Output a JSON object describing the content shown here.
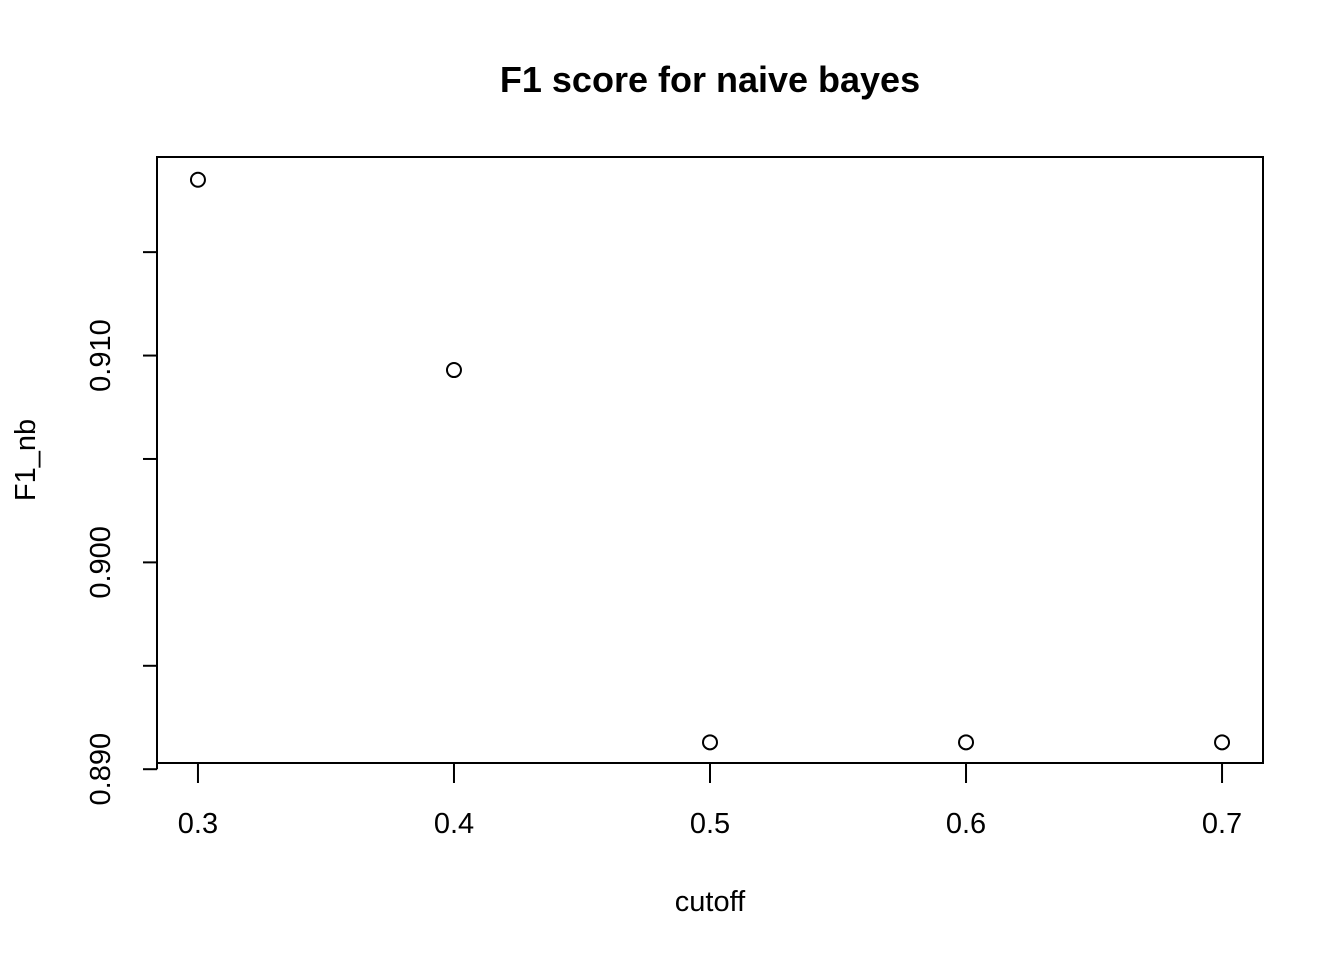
{
  "chart_data": {
    "type": "scatter",
    "title": "F1 score for naive bayes",
    "xlabel": "cutoff",
    "ylabel": "F1_nb",
    "x": [
      0.3,
      0.4,
      0.5,
      0.6,
      0.7
    ],
    "y": [
      0.9185,
      0.9093,
      0.8913,
      0.8913,
      0.8913
    ],
    "xlim": [
      0.284,
      0.716
    ],
    "ylim": [
      0.8903,
      0.9196
    ],
    "x_ticks": [
      0.3,
      0.4,
      0.5,
      0.6,
      0.7
    ],
    "x_tick_labels": [
      "0.3",
      "0.4",
      "0.5",
      "0.6",
      "0.7"
    ],
    "y_ticks": [
      0.89,
      0.895,
      0.9,
      0.905,
      0.91,
      0.915
    ],
    "y_tick_labels": [
      "0.890",
      "",
      "0.900",
      "",
      "0.910",
      ""
    ],
    "marker": "open-circle",
    "grid": false,
    "legend": "none",
    "colors": {
      "marker": "#000000",
      "axes": "#000000",
      "background": "#ffffff"
    }
  }
}
